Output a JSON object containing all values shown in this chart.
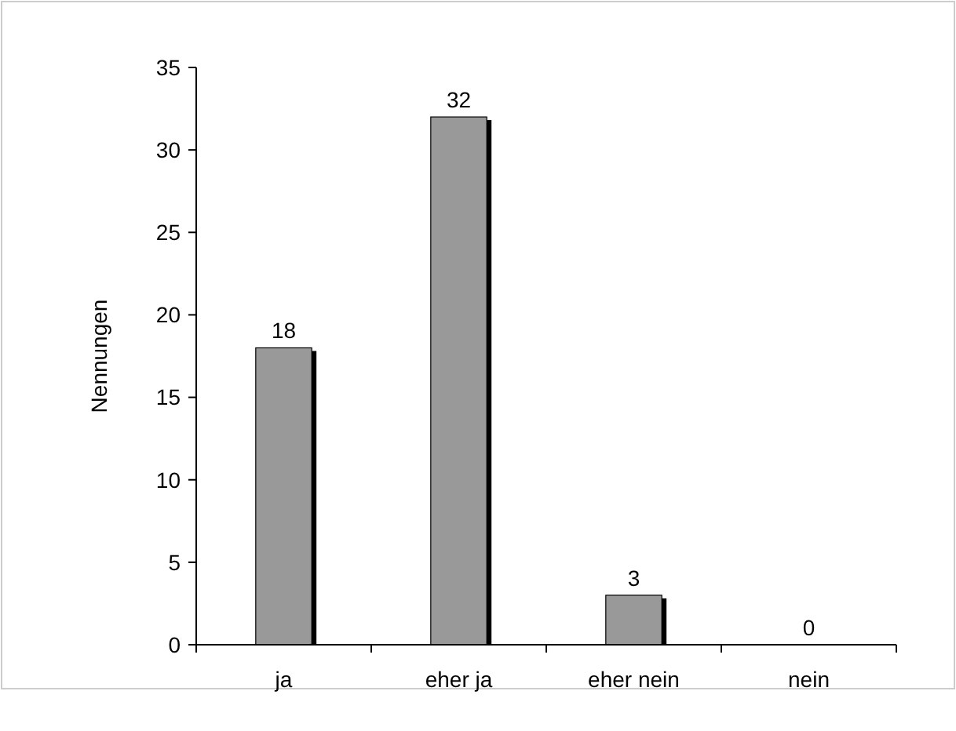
{
  "chart_data": {
    "type": "bar",
    "ylabel": "Nennungen",
    "categories": [
      "ja",
      "eher ja",
      "eher nein",
      "nein"
    ],
    "values": [
      18,
      32,
      3,
      0
    ],
    "color": "#999999",
    "ylim": [
      0,
      35
    ],
    "yticks": [
      0,
      5,
      10,
      15,
      20,
      25,
      30,
      35
    ],
    "grid": false,
    "data_labels": true
  }
}
